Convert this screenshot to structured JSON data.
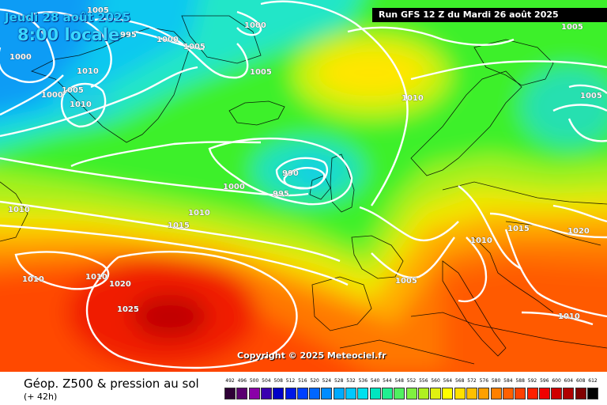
{
  "header": {
    "valid_date": "Jeudi 28 août 2025",
    "local_time": "8:00 locale",
    "run_info": "Run GFS 12 Z du Mardi 26 août 2025"
  },
  "copyright": "Copyright © 2025 Meteociel.fr",
  "footer": {
    "product_title": "Géop. Z500 & pression au sol",
    "lead_time": "(+ 42h)"
  },
  "legend": {
    "values": [
      "492",
      "496",
      "500",
      "504",
      "508",
      "512",
      "516",
      "520",
      "524",
      "528",
      "532",
      "536",
      "540",
      "544",
      "548",
      "552",
      "556",
      "560",
      "564",
      "568",
      "572",
      "576",
      "580",
      "584",
      "588",
      "592",
      "596",
      "600",
      "604",
      "608",
      "612"
    ],
    "colors": [
      "#2e0036",
      "#5a0070",
      "#8a00a8",
      "#3a00b0",
      "#0000c8",
      "#0018e6",
      "#0040ff",
      "#0066ff",
      "#008cff",
      "#00aaff",
      "#00c8ff",
      "#00e0ee",
      "#00e6c0",
      "#20f090",
      "#50f060",
      "#80f040",
      "#b0f020",
      "#e0f010",
      "#ffff00",
      "#ffe000",
      "#ffc000",
      "#ffa000",
      "#ff8000",
      "#ff6000",
      "#ff4000",
      "#ff2000",
      "#f00000",
      "#d00000",
      "#b00000",
      "#800000",
      "#000000"
    ]
  },
  "isobar_labels": [
    "1005",
    "995",
    "1000",
    "1000",
    "1000",
    "1005",
    "1010",
    "1005",
    "1010",
    "1000",
    "1005",
    "1010",
    "990",
    "995",
    "1000",
    "1010",
    "1015",
    "1010",
    "1010",
    "1020",
    "1025",
    "1005",
    "1005",
    "1010",
    "1015",
    "1020",
    "1010"
  ]
}
